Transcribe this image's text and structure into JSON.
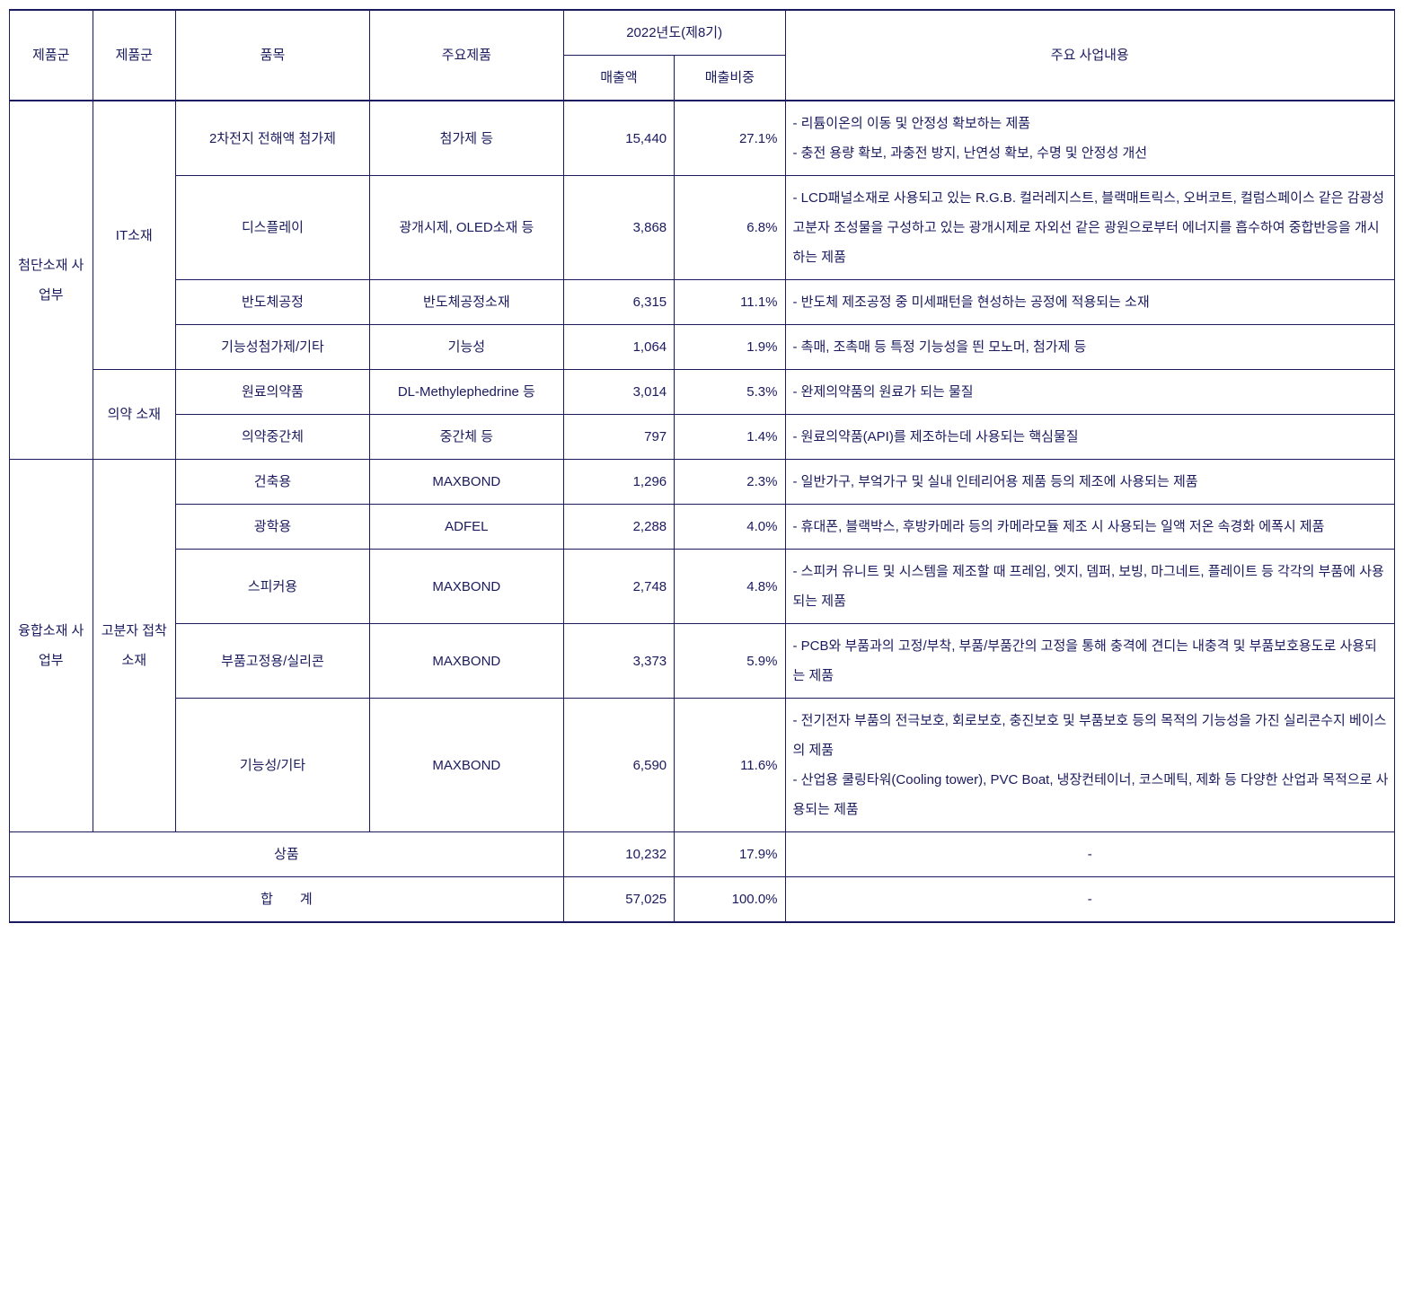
{
  "header": {
    "col1": "제품군",
    "col2": "제품군",
    "col3": "품목",
    "col4": "주요제품",
    "col5_group": "2022년도(제8기)",
    "col5_sub1": "매출액",
    "col5_sub2": "매출비중",
    "col6": "주요 사업내용"
  },
  "rows": [
    {
      "group1": "첨단소재 사업부",
      "group2": "IT소재",
      "item": "2차전지 전해액 첨가제",
      "product": "첨가제 등",
      "amount": "15,440",
      "ratio": "27.1%",
      "desc": "- 리튬이온의 이동 및 안정성 확보하는 제품\n- 충전 용량 확보, 과충전 방지, 난연성 확보, 수명 및 안정성 개선"
    },
    {
      "item": "디스플레이",
      "product": "광개시제, OLED소재 등",
      "amount": "3,868",
      "ratio": "6.8%",
      "desc": "- LCD패널소재로 사용되고 있는 R.G.B. 컬러레지스트, 블랙매트릭스, 오버코트, 컬럼스페이스 같은 감광성 고분자 조성물을 구성하고 있는 광개시제로 자외선 같은 광원으로부터 에너지를 흡수하여 중합반응을 개시하는 제품"
    },
    {
      "item": "반도체공정",
      "product": "반도체공정소재",
      "amount": "6,315",
      "ratio": "11.1%",
      "desc": "- 반도체 제조공정 중 미세패턴을 현성하는 공정에 적용되는 소재"
    },
    {
      "item": "기능성첨가제/기타",
      "product": "기능성",
      "amount": "1,064",
      "ratio": "1.9%",
      "desc": "- 촉매, 조촉매 등 특정 기능성을 띈 모노머, 첨가제 등"
    },
    {
      "group2": "의약 소재",
      "item": "원료의약품",
      "product": "DL-Methylephedrine 등",
      "amount": "3,014",
      "ratio": "5.3%",
      "desc": "- 완제의약품의 원료가 되는 물질"
    },
    {
      "item": "의약중간체",
      "product": "중간체 등",
      "amount": "797",
      "ratio": "1.4%",
      "desc": "- 원료의약품(API)를 제조하는데 사용되는 핵심물질"
    },
    {
      "group1": "융합소재 사업부",
      "group2": "고분자 접착 소재",
      "item": "건축용",
      "product": "MAXBOND",
      "amount": "1,296",
      "ratio": "2.3%",
      "desc": "- 일반가구, 부엌가구 및 실내 인테리어용 제품 등의 제조에 사용되는 제품"
    },
    {
      "item": "광학용",
      "product": "ADFEL",
      "amount": "2,288",
      "ratio": "4.0%",
      "desc": "- 휴대폰, 블랙박스, 후방카메라 등의 카메라모듈 제조 시 사용되는 일액 저온 속경화 에폭시 제품"
    },
    {
      "item": "스피커용",
      "product": "MAXBOND",
      "amount": "2,748",
      "ratio": "4.8%",
      "desc": "- 스피커 유니트 및 시스템을 제조할 때 프레임, 엣지, 뎀퍼, 보빙, 마그네트, 플레이트 등 각각의 부품에 사용되는 제품"
    },
    {
      "item": "부품고정용/실리콘",
      "product": "MAXBOND",
      "amount": "3,373",
      "ratio": "5.9%",
      "desc": "- PCB와 부품과의 고정/부착, 부품/부품간의 고정을 통해 충격에 견디는 내충격 및 부품보호용도로 사용되는 제품"
    },
    {
      "item": "기능성/기타",
      "product": "MAXBOND",
      "amount": "6,590",
      "ratio": "11.6%",
      "desc": "- 전기전자 부품의 전극보호, 회로보호, 충진보호 및 부품보호 등의 목적의 기능성을 가진 실리콘수지 베이스의 제품\n- 산업용 쿨링타워(Cooling tower), PVC Boat, 냉장컨테이너, 코스메틱, 제화 등 다양한 산업과 목적으로 사용되는 제품"
    }
  ],
  "summary": {
    "goods_label": "상품",
    "goods_amount": "10,232",
    "goods_ratio": "17.9%",
    "goods_desc": "-",
    "total_label": "합　　계",
    "total_amount": "57,025",
    "total_ratio": "100.0%",
    "total_desc": "-"
  },
  "style": {
    "text_color": "#1a1a5e",
    "border_color": "#1a1a5e",
    "background": "#ffffff",
    "font_size_pt": 15,
    "line_height": 2.2
  }
}
